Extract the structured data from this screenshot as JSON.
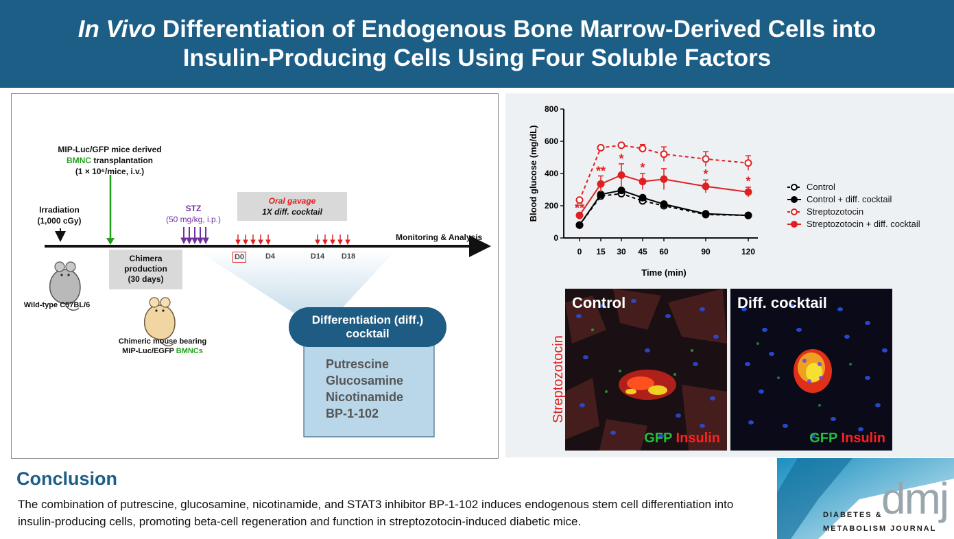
{
  "header": {
    "title_italic": "In Vivo",
    "title_line1_rest": " Differentiation of Endogenous Bone Marrow-Derived Cells into",
    "title_line2": "Insulin-Producing Cells Using Four Soluble Factors"
  },
  "schematic": {
    "transplant_line1": "MIP-Luc/GFP mice derived",
    "transplant_bmnc": "BMNC",
    "transplant_line2_rest": " transplantation",
    "transplant_dose": "(1 × 10⁶/mice, i.v.)",
    "irradiation": "Irradiation",
    "irradiation_dose": "(1,000 cGy)",
    "stz": "STZ",
    "stz_dose": "(50 mg/kg, i.p.)",
    "oral_gavage": "Oral gavage",
    "cocktail_dose": "1X diff. cocktail",
    "monitoring": "Monitoring & Analysis",
    "chimera_line1": "Chimera",
    "chimera_line2": "production",
    "chimera_line3": "(30 days)",
    "days": [
      "D0",
      "D4",
      "D14",
      "D18"
    ],
    "wild_type": "Wild-type C57BL/6",
    "chimeric_line1": "Chimeric mouse bearing",
    "chimeric_line2": "MIP-Luc/EGFP ",
    "chimeric_bmnc": "BMNCs",
    "diff_title_line1": "Differentiation (diff.)",
    "diff_title_line2": "cocktail",
    "factors": [
      "Putrescine",
      "Glucosamine",
      "Nicotinamide",
      "BP-1-102"
    ]
  },
  "chart_data": {
    "type": "line",
    "xlabel": "Time (min)",
    "ylabel": "Blood glucose (mg/dL)",
    "x": [
      0,
      15,
      30,
      45,
      60,
      90,
      120
    ],
    "xticks": [
      "0",
      "15",
      "30",
      "45",
      "60",
      "90",
      "120"
    ],
    "ylim": [
      0,
      800
    ],
    "yticks": [
      "0",
      "200",
      "400",
      "600",
      "800"
    ],
    "series": [
      {
        "name": "Control",
        "values": [
          80,
          260,
          275,
          230,
          200,
          145,
          140
        ],
        "color": "#000000",
        "dashed": true,
        "filled": false,
        "errors": [
          5,
          10,
          10,
          10,
          8,
          6,
          6
        ]
      },
      {
        "name": "Control + diff. cocktail",
        "values": [
          80,
          270,
          295,
          250,
          210,
          150,
          140
        ],
        "color": "#000000",
        "dashed": false,
        "filled": true,
        "errors": [
          5,
          10,
          12,
          10,
          8,
          6,
          6
        ]
      },
      {
        "name": "Streptozotocin",
        "values": [
          235,
          560,
          575,
          555,
          520,
          490,
          465
        ],
        "color": "#e02020",
        "dashed": true,
        "filled": false,
        "errors": [
          10,
          15,
          15,
          25,
          45,
          45,
          45
        ]
      },
      {
        "name": "Streptozotocin + diff. cocktail",
        "values": [
          140,
          335,
          390,
          350,
          365,
          320,
          285
        ],
        "color": "#e02020",
        "dashed": false,
        "filled": true,
        "errors": [
          10,
          50,
          70,
          50,
          65,
          40,
          30
        ]
      }
    ],
    "annotations": [
      {
        "x": 0,
        "y": 160,
        "text": "**"
      },
      {
        "x": 15,
        "y": 390,
        "text": "**"
      },
      {
        "x": 30,
        "y": 465,
        "text": "*"
      },
      {
        "x": 45,
        "y": 410,
        "text": "*"
      },
      {
        "x": 90,
        "y": 370,
        "text": "*"
      },
      {
        "x": 120,
        "y": 325,
        "text": "*"
      }
    ]
  },
  "histology": {
    "row_label": "Streptozotocin",
    "panels": [
      {
        "label": "Control",
        "gfp": "GFP",
        "insulin": "Insulin"
      },
      {
        "label": "Diff. cocktail",
        "gfp": "GFP",
        "insulin": "Insulin"
      }
    ]
  },
  "conclusion": {
    "title": "Conclusion",
    "text": "The combination of putrescine, glucosamine, nicotinamide, and STAT3 inhibitor BP-1-102 induces endogenous stem cell differentiation into insulin-producing cells, promoting beta-cell regeneration and function in streptozotocin-induced diabetic mice."
  },
  "logo": {
    "letters": "dmj",
    "line1": "DIABETES &",
    "line2": "METABOLISM JOURNAL"
  },
  "colors": {
    "header": "#1c5e86",
    "accent_red": "#e02020",
    "accent_green": "#1ea01e",
    "accent_purple": "#7030a0",
    "pill": "#1f5c84",
    "factor_box": "#b9d7e8"
  }
}
